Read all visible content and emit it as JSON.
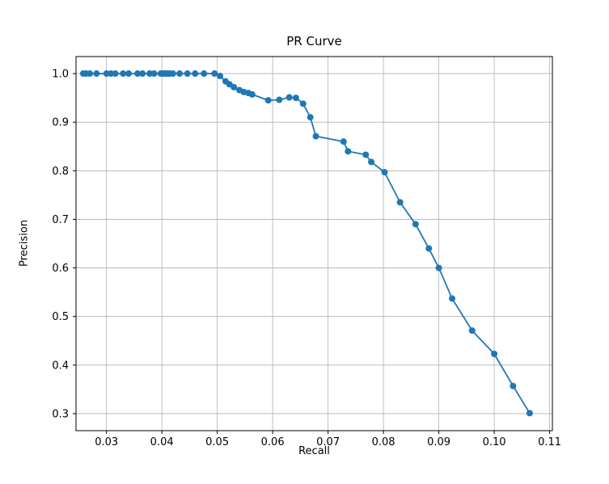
{
  "chart_data": {
    "type": "line",
    "title": "PR Curve",
    "xlabel": "Recall",
    "ylabel": "Precision",
    "line_color": "#1f77b4",
    "marker": "circle",
    "marker_radius": 4,
    "grid": true,
    "grid_color": "#b0b0b0",
    "xlim": [
      0.0245,
      0.1105
    ],
    "ylim": [
      0.265,
      1.035
    ],
    "xticks": [
      0.03,
      0.04,
      0.05,
      0.06,
      0.07,
      0.08,
      0.09,
      0.1,
      0.11
    ],
    "yticks": [
      0.3,
      0.4,
      0.5,
      0.6,
      0.7,
      0.8,
      0.9,
      1.0
    ],
    "x": [
      0.0258,
      0.0263,
      0.027,
      0.0282,
      0.03,
      0.0308,
      0.0316,
      0.033,
      0.034,
      0.0356,
      0.0365,
      0.0378,
      0.0386,
      0.0398,
      0.0402,
      0.0406,
      0.041,
      0.0414,
      0.042,
      0.0432,
      0.0446,
      0.046,
      0.0476,
      0.0495,
      0.0505,
      0.0515,
      0.0522,
      0.053,
      0.054,
      0.0548,
      0.0556,
      0.0563,
      0.0592,
      0.0612,
      0.063,
      0.0642,
      0.0655,
      0.0668,
      0.0678,
      0.0728,
      0.0736,
      0.0768,
      0.0778,
      0.0802,
      0.083,
      0.0858,
      0.0882,
      0.09,
      0.0924,
      0.096,
      0.1,
      0.1034,
      0.1064
    ],
    "y": [
      1.0,
      1.0,
      1.0,
      1.0,
      1.0,
      1.0,
      1.0,
      1.0,
      1.0,
      1.0,
      1.0,
      1.0,
      1.0,
      1.0,
      1.0,
      1.0,
      1.0,
      1.0,
      1.0,
      1.0,
      1.0,
      1.0,
      1.0,
      1.0,
      0.995,
      0.984,
      0.978,
      0.972,
      0.966,
      0.962,
      0.96,
      0.957,
      0.945,
      0.946,
      0.951,
      0.95,
      0.938,
      0.91,
      0.871,
      0.86,
      0.84,
      0.833,
      0.818,
      0.797,
      0.735,
      0.69,
      0.64,
      0.6,
      0.537,
      0.471,
      0.423,
      0.357,
      0.301
    ]
  }
}
